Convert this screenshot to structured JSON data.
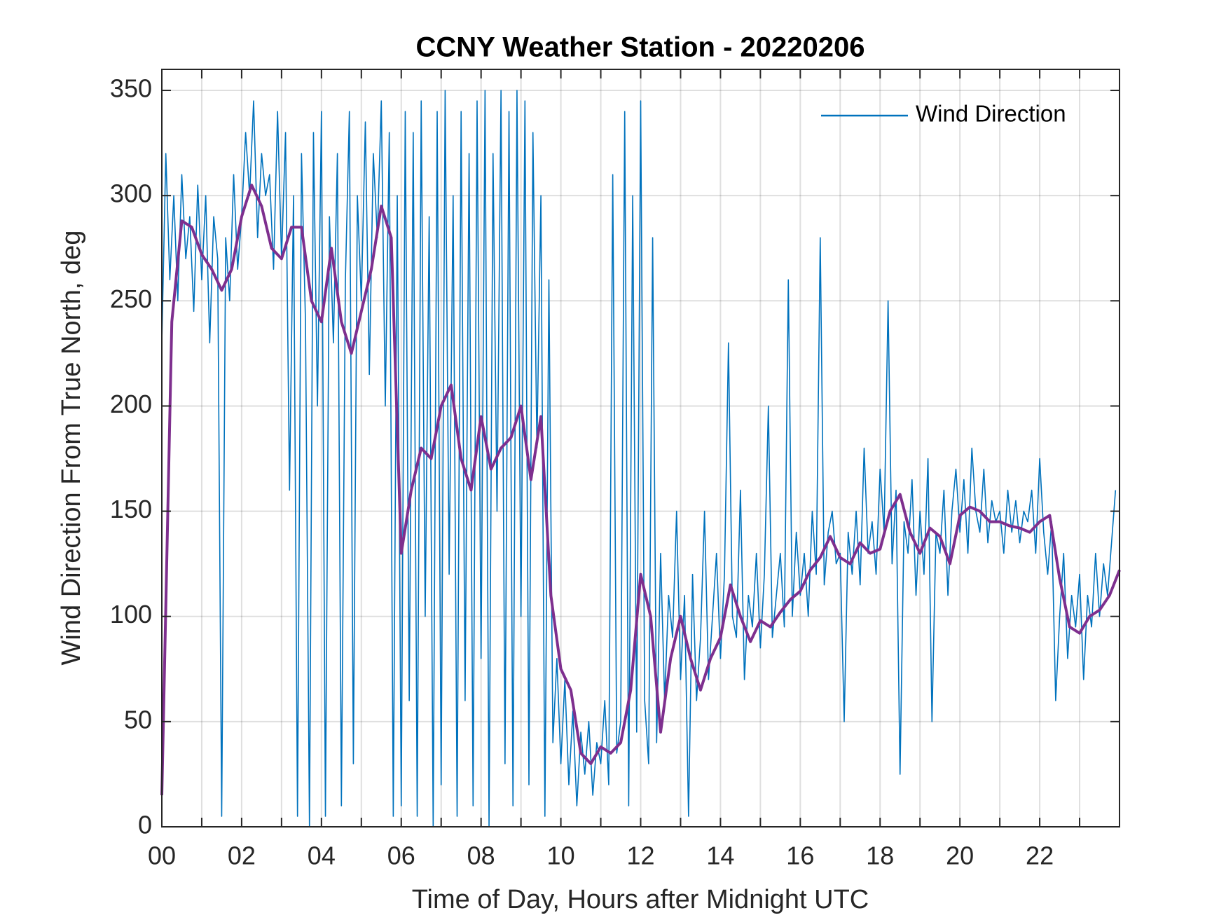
{
  "chart_data": {
    "type": "line",
    "title": "CCNY Weather Station - 20220206",
    "xlabel": "Time of Day, Hours after Midnight UTC",
    "ylabel": "Wind Direction From True North, deg",
    "xlim": [
      0,
      24
    ],
    "ylim": [
      0,
      360
    ],
    "xticks": [
      {
        "value": 0,
        "label": "00"
      },
      {
        "value": 2,
        "label": "02"
      },
      {
        "value": 4,
        "label": "04"
      },
      {
        "value": 6,
        "label": "06"
      },
      {
        "value": 8,
        "label": "08"
      },
      {
        "value": 10,
        "label": "10"
      },
      {
        "value": 12,
        "label": "12"
      },
      {
        "value": 14,
        "label": "14"
      },
      {
        "value": 16,
        "label": "16"
      },
      {
        "value": 18,
        "label": "18"
      },
      {
        "value": 20,
        "label": "20"
      },
      {
        "value": 22,
        "label": "22"
      }
    ],
    "xminorticks": [
      1,
      3,
      5,
      7,
      9,
      11,
      13,
      15,
      17,
      19,
      21,
      23
    ],
    "yticks": [
      0,
      50,
      100,
      150,
      200,
      250,
      300,
      350
    ],
    "grid": true,
    "legend": "upper right",
    "series": [
      {
        "name": "Wind Direction",
        "color": "#0072bd",
        "width": 1.6,
        "x": [
          0,
          0.1,
          0.2,
          0.3,
          0.4,
          0.5,
          0.6,
          0.7,
          0.8,
          0.9,
          1,
          1.1,
          1.2,
          1.3,
          1.4,
          1.5,
          1.6,
          1.7,
          1.8,
          1.9,
          2,
          2.1,
          2.2,
          2.3,
          2.4,
          2.5,
          2.6,
          2.7,
          2.8,
          2.9,
          3,
          3.1,
          3.2,
          3.3,
          3.4,
          3.5,
          3.6,
          3.7,
          3.8,
          3.9,
          4,
          4.1,
          4.2,
          4.3,
          4.4,
          4.5,
          4.6,
          4.7,
          4.8,
          4.9,
          5,
          5.1,
          5.2,
          5.3,
          5.4,
          5.5,
          5.6,
          5.7,
          5.8,
          5.9,
          6,
          6.1,
          6.2,
          6.3,
          6.4,
          6.5,
          6.6,
          6.7,
          6.8,
          6.9,
          7,
          7.1,
          7.2,
          7.3,
          7.4,
          7.5,
          7.6,
          7.7,
          7.8,
          7.9,
          8,
          8.1,
          8.2,
          8.3,
          8.4,
          8.5,
          8.6,
          8.7,
          8.8,
          8.9,
          9,
          9.1,
          9.2,
          9.3,
          9.4,
          9.5,
          9.6,
          9.7,
          9.8,
          9.9,
          10,
          10.1,
          10.2,
          10.3,
          10.4,
          10.5,
          10.6,
          10.7,
          10.8,
          10.9,
          11,
          11.1,
          11.2,
          11.3,
          11.4,
          11.5,
          11.6,
          11.7,
          11.8,
          11.9,
          12,
          12.1,
          12.2,
          12.3,
          12.4,
          12.5,
          12.6,
          12.7,
          12.8,
          12.9,
          13,
          13.1,
          13.2,
          13.3,
          13.4,
          13.5,
          13.6,
          13.7,
          13.8,
          13.9,
          14,
          14.1,
          14.2,
          14.3,
          14.4,
          14.5,
          14.6,
          14.7,
          14.8,
          14.9,
          15,
          15.1,
          15.2,
          15.3,
          15.4,
          15.5,
          15.6,
          15.7,
          15.8,
          15.9,
          16,
          16.1,
          16.2,
          16.3,
          16.4,
          16.5,
          16.6,
          16.7,
          16.8,
          16.9,
          17,
          17.1,
          17.2,
          17.3,
          17.4,
          17.5,
          17.6,
          17.7,
          17.8,
          17.9,
          18,
          18.1,
          18.2,
          18.3,
          18.4,
          18.5,
          18.6,
          18.7,
          18.8,
          18.9,
          19,
          19.1,
          19.2,
          19.3,
          19.4,
          19.5,
          19.6,
          19.7,
          19.8,
          19.9,
          20,
          20.1,
          20.2,
          20.3,
          20.4,
          20.5,
          20.6,
          20.7,
          20.8,
          20.9,
          21,
          21.1,
          21.2,
          21.3,
          21.4,
          21.5,
          21.6,
          21.7,
          21.8,
          21.9,
          22,
          22.1,
          22.2,
          22.3,
          22.4,
          22.5,
          22.6,
          22.7,
          22.8,
          22.9,
          23,
          23.1,
          23.2,
          23.3,
          23.4,
          23.5,
          23.6,
          23.7,
          23.8,
          23.9
        ],
        "values": [
          230,
          320,
          260,
          300,
          250,
          310,
          270,
          290,
          245,
          305,
          260,
          300,
          230,
          290,
          270,
          5,
          280,
          250,
          310,
          265,
          290,
          330,
          300,
          345,
          280,
          320,
          300,
          310,
          265,
          340,
          270,
          330,
          160,
          300,
          5,
          320,
          240,
          0,
          330,
          200,
          340,
          5,
          290,
          230,
          320,
          10,
          260,
          340,
          30,
          300,
          250,
          335,
          215,
          320,
          280,
          345,
          200,
          330,
          5,
          300,
          10,
          340,
          60,
          330,
          5,
          345,
          100,
          290,
          0,
          340,
          20,
          350,
          120,
          300,
          5,
          340,
          60,
          320,
          10,
          345,
          80,
          350,
          0,
          320,
          150,
          350,
          30,
          340,
          10,
          350,
          100,
          345,
          20,
          330,
          180,
          300,
          5,
          260,
          40,
          80,
          30,
          70,
          20,
          55,
          10,
          45,
          25,
          50,
          15,
          40,
          30,
          60,
          20,
          310,
          35,
          50,
          340,
          10,
          300,
          45,
          345,
          60,
          30,
          280,
          40,
          130,
          60,
          110,
          90,
          150,
          70,
          110,
          5,
          120,
          60,
          90,
          150,
          70,
          100,
          130,
          80,
          120,
          230,
          100,
          90,
          160,
          70,
          110,
          95,
          130,
          85,
          120,
          200,
          90,
          110,
          130,
          95,
          260,
          100,
          140,
          110,
          130,
          100,
          150,
          120,
          280,
          115,
          140,
          150,
          125,
          130,
          50,
          140,
          120,
          150,
          115,
          180,
          130,
          145,
          120,
          170,
          140,
          250,
          125,
          160,
          25,
          145,
          130,
          165,
          110,
          150,
          120,
          175,
          50,
          140,
          130,
          160,
          110,
          150,
          170,
          140,
          165,
          130,
          180,
          150,
          140,
          170,
          135,
          155,
          145,
          150,
          130,
          160,
          140,
          155,
          135,
          150,
          145,
          160,
          130,
          175,
          140,
          120,
          145,
          60,
          100,
          130,
          80,
          110,
          95,
          120,
          70,
          110,
          95,
          130,
          100,
          125,
          110,
          135,
          160
        ]
      },
      {
        "color": "#7e2f8e",
        "width": 4,
        "x": [
          0,
          0.25,
          0.5,
          0.75,
          1,
          1.25,
          1.5,
          1.75,
          2,
          2.25,
          2.5,
          2.75,
          3,
          3.25,
          3.5,
          3.75,
          4,
          4.25,
          4.5,
          4.75,
          5,
          5.25,
          5.5,
          5.75,
          6,
          6.25,
          6.5,
          6.75,
          7,
          7.25,
          7.5,
          7.75,
          8,
          8.25,
          8.5,
          8.75,
          9,
          9.25,
          9.5,
          9.75,
          10,
          10.25,
          10.5,
          10.75,
          11,
          11.25,
          11.5,
          11.75,
          12,
          12.25,
          12.5,
          12.75,
          13,
          13.25,
          13.5,
          13.75,
          14,
          14.25,
          14.5,
          14.75,
          15,
          15.25,
          15.5,
          15.75,
          16,
          16.25,
          16.5,
          16.75,
          17,
          17.25,
          17.5,
          17.75,
          18,
          18.25,
          18.5,
          18.75,
          19,
          19.25,
          19.5,
          19.75,
          20,
          20.25,
          20.5,
          20.75,
          21,
          21.25,
          21.5,
          21.75,
          22,
          22.25,
          22.5,
          22.75,
          23,
          23.25,
          23.5,
          23.75,
          24
        ],
        "values": [
          15,
          240,
          288,
          285,
          272,
          265,
          255,
          265,
          290,
          305,
          295,
          275,
          270,
          285,
          285,
          250,
          240,
          275,
          240,
          225,
          245,
          265,
          295,
          280,
          130,
          160,
          180,
          175,
          200,
          210,
          175,
          160,
          195,
          170,
          180,
          185,
          200,
          165,
          195,
          110,
          75,
          65,
          35,
          30,
          38,
          35,
          40,
          65,
          120,
          100,
          45,
          80,
          100,
          80,
          65,
          80,
          90,
          115,
          100,
          88,
          98,
          95,
          102,
          108,
          112,
          122,
          128,
          138,
          128,
          125,
          135,
          130,
          132,
          150,
          158,
          140,
          130,
          142,
          138,
          125,
          148,
          152,
          150,
          145,
          145,
          143,
          142,
          140,
          145,
          148,
          118,
          95,
          92,
          100,
          103,
          110,
          122
        ]
      }
    ]
  }
}
